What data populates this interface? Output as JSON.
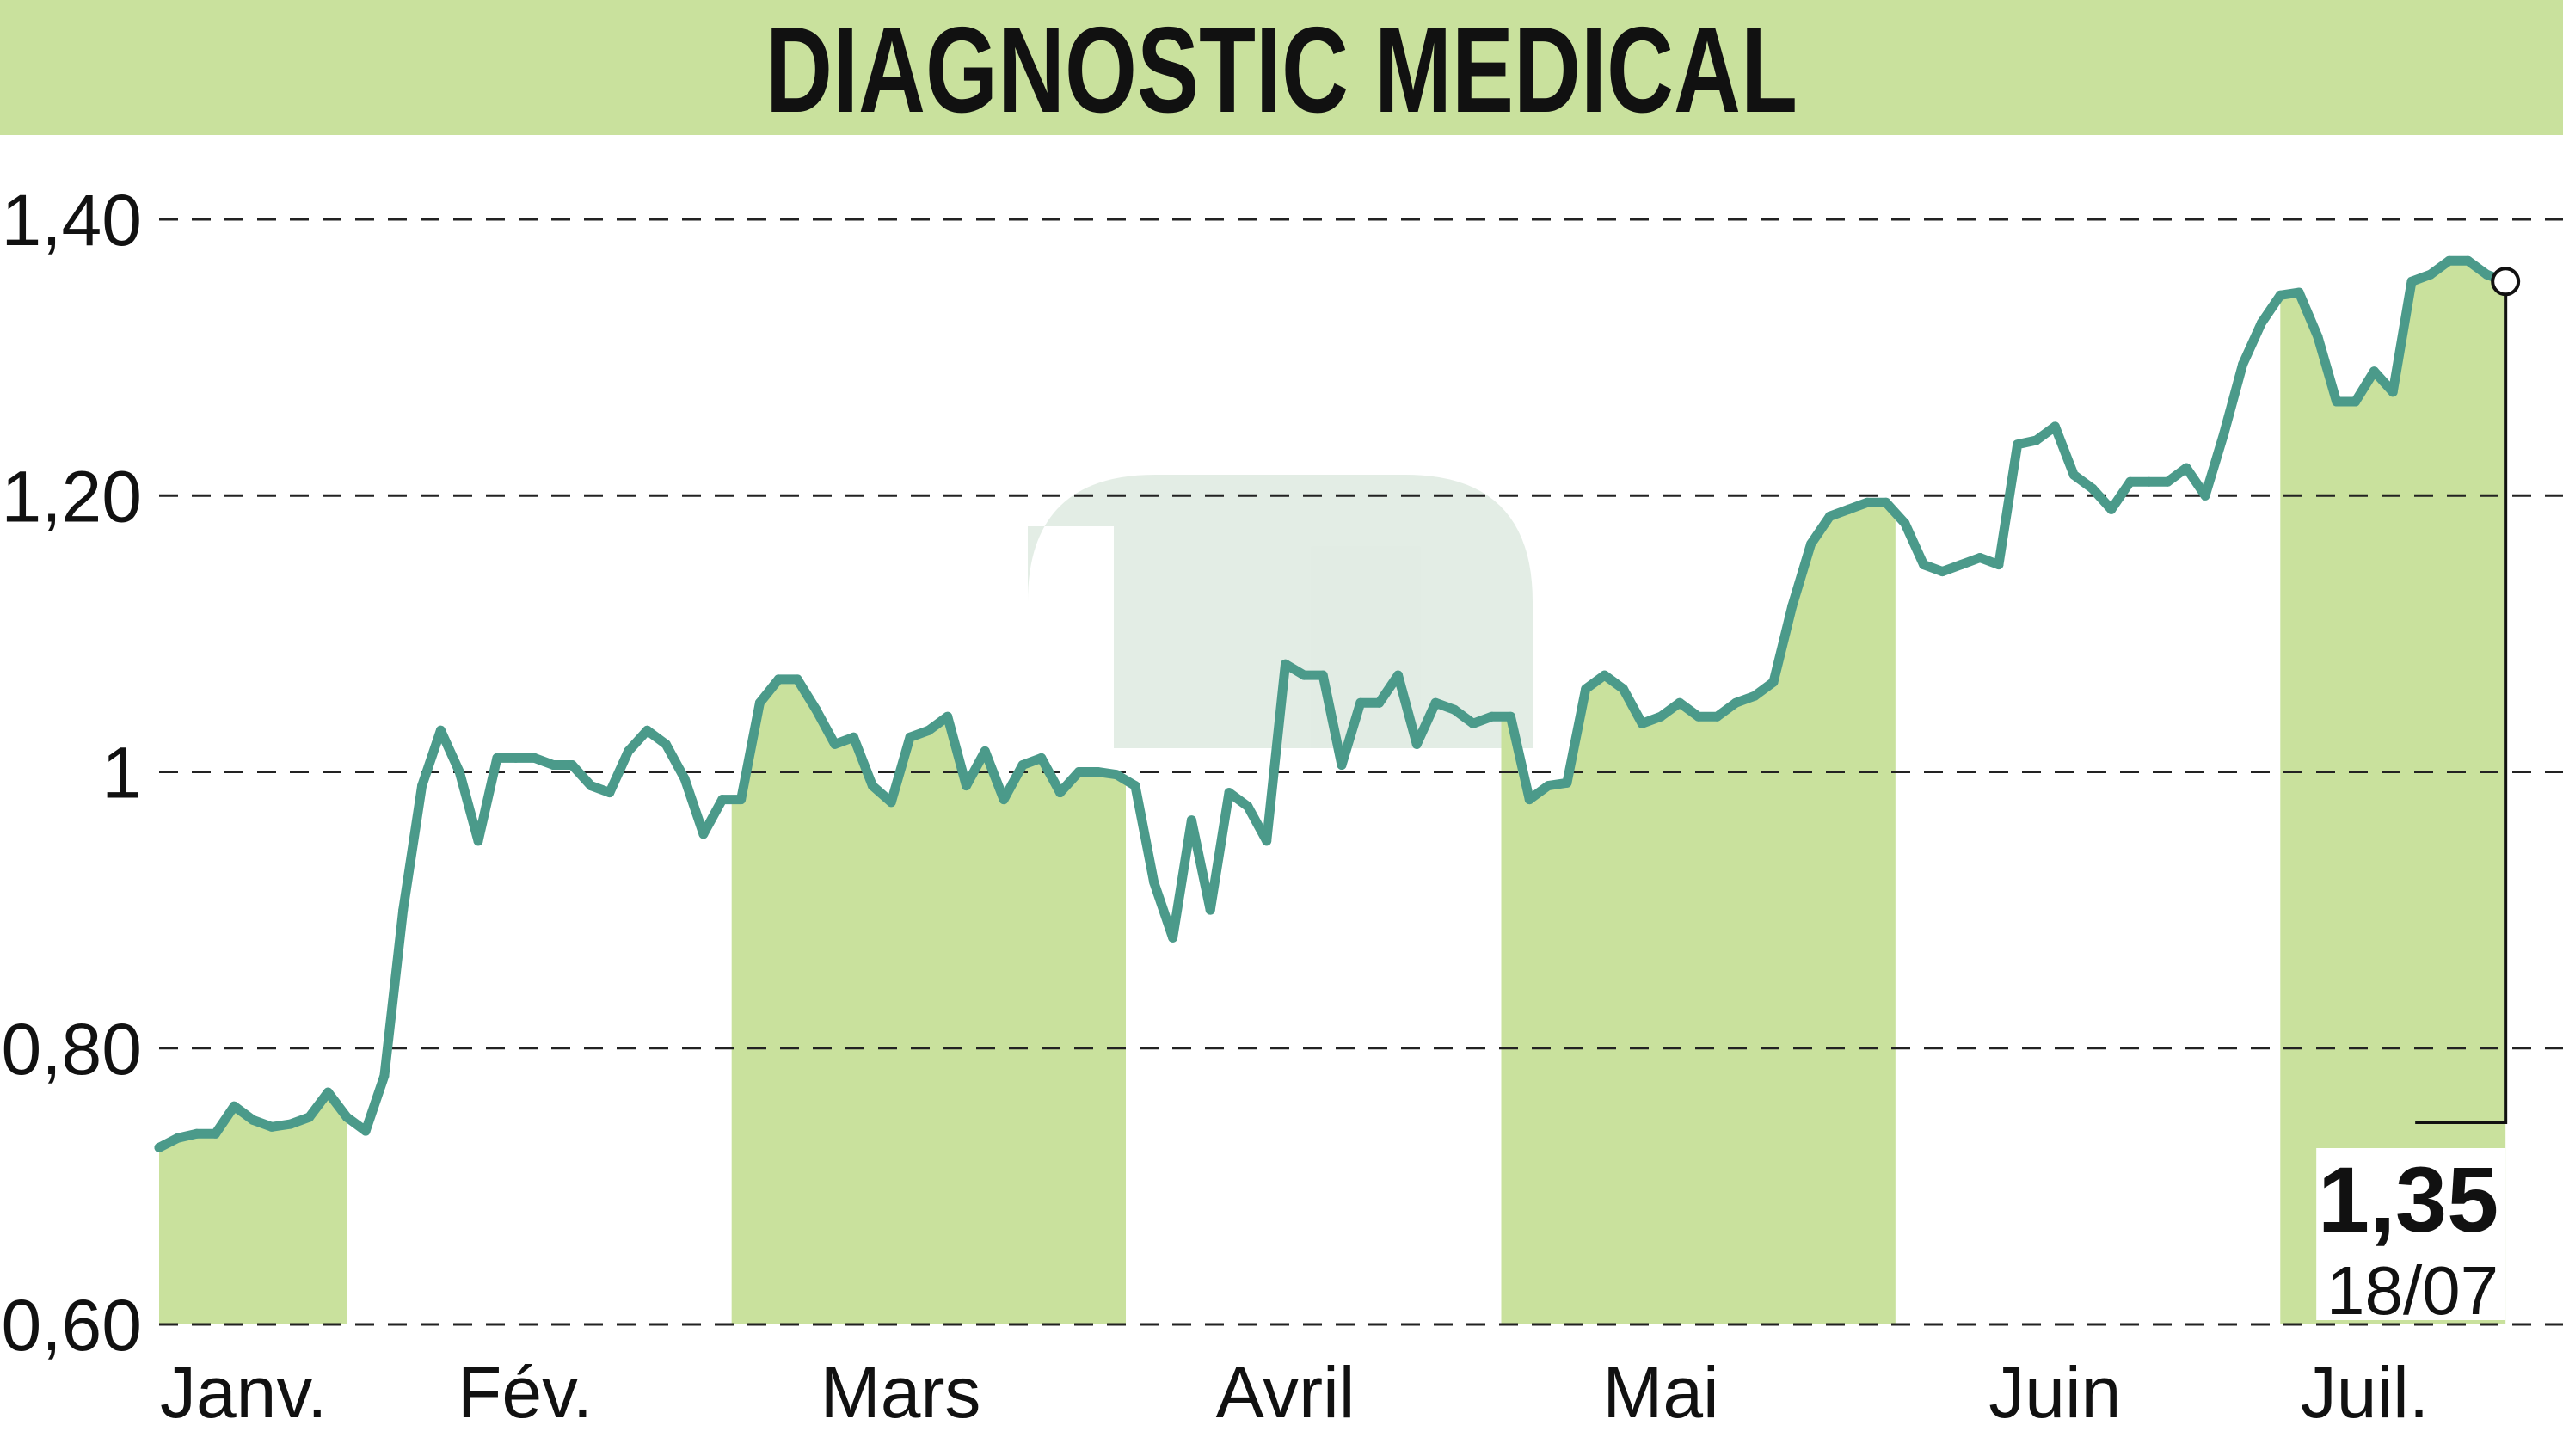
{
  "colors": {
    "header_bg": "#c9e19d",
    "area_fill": "#c9e19d",
    "line": "#4b9a8a",
    "grid": "#222222",
    "text": "#111111"
  },
  "chart_data": {
    "type": "line",
    "title": "DIAGNOSTIC MEDICAL",
    "xlabel": "",
    "ylabel": "",
    "ylim": [
      0.6,
      1.45
    ],
    "y_ticks": [
      {
        "value": 0.6,
        "label": "0,60"
      },
      {
        "value": 0.8,
        "label": "0,80"
      },
      {
        "value": 1.0,
        "label": "1"
      },
      {
        "value": 1.2,
        "label": "1,20"
      },
      {
        "value": 1.4,
        "label": "1,40"
      }
    ],
    "x_range": [
      0,
      126
    ],
    "months": [
      {
        "label": "Janv.",
        "start": 0,
        "end": 10,
        "label_at": 4.5,
        "shaded": true
      },
      {
        "label": "Fév.",
        "start": 10,
        "end": 30.5,
        "label_at": 19.5,
        "shaded": false
      },
      {
        "label": "Mars",
        "start": 30.5,
        "end": 51.5,
        "label_at": 39.5,
        "shaded": true
      },
      {
        "label": "Avril",
        "start": 51.5,
        "end": 71.5,
        "label_at": 60,
        "shaded": false
      },
      {
        "label": "Mai",
        "start": 71.5,
        "end": 92.5,
        "label_at": 80,
        "shaded": true
      },
      {
        "label": "Juin",
        "start": 92.5,
        "end": 113,
        "label_at": 101,
        "shaded": false
      },
      {
        "label": "Juil.",
        "start": 113,
        "end": 126,
        "label_at": 117.5,
        "shaded": true
      }
    ],
    "grid": true,
    "series": [
      {
        "values": [
          0.728,
          0.735,
          0.738,
          0.738,
          0.758,
          0.748,
          0.743,
          0.745,
          0.75,
          0.768,
          0.75,
          0.74,
          0.78,
          0.9,
          0.99,
          1.03,
          1.0,
          0.95,
          1.01,
          1.01,
          1.01,
          1.005,
          1.005,
          0.99,
          0.985,
          1.015,
          1.03,
          1.02,
          0.995,
          0.955,
          0.98,
          0.98,
          1.05,
          1.067,
          1.067,
          1.045,
          1.02,
          1.025,
          0.99,
          0.978,
          1.025,
          1.03,
          1.04,
          0.99,
          1.015,
          0.98,
          1.005,
          1.01,
          0.985,
          1.0,
          1.0,
          0.998,
          0.99,
          0.92,
          0.88,
          0.965,
          0.9,
          0.985,
          0.975,
          0.95,
          1.078,
          1.07,
          1.07,
          1.005,
          1.05,
          1.05,
          1.07,
          1.02,
          1.05,
          1.045,
          1.035,
          1.04,
          1.04,
          0.98,
          0.99,
          0.992,
          1.06,
          1.07,
          1.06,
          1.035,
          1.04,
          1.05,
          1.04,
          1.04,
          1.05,
          1.055,
          1.065,
          1.12,
          1.165,
          1.185,
          1.19,
          1.195,
          1.195,
          1.18,
          1.15,
          1.145,
          1.15,
          1.155,
          1.15,
          1.237,
          1.24,
          1.25,
          1.215,
          1.205,
          1.19,
          1.21,
          1.21,
          1.21,
          1.22,
          1.2,
          1.245,
          1.295,
          1.325,
          1.345,
          1.347,
          1.315,
          1.268,
          1.268,
          1.29,
          1.275,
          1.355,
          1.36,
          1.37,
          1.37,
          1.36,
          1.355
        ]
      }
    ],
    "last_value": {
      "label": "1,35",
      "date": "18/07"
    }
  }
}
